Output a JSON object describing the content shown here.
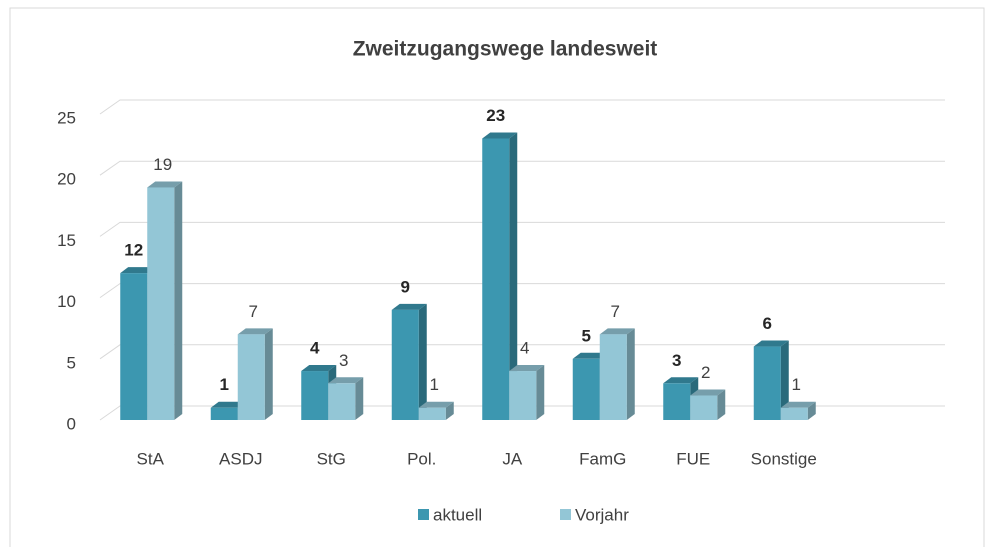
{
  "chart_data": {
    "type": "bar",
    "title": "Zweitzugangswege landesweit",
    "categories": [
      "StA",
      "ASDJ",
      "StG",
      "Pol.",
      "JA",
      "FamG",
      "FUE",
      "Sonstige"
    ],
    "series": [
      {
        "name": "aktuell",
        "color": "#3c97b0",
        "values": [
          12,
          1,
          4,
          9,
          23,
          5,
          3,
          6
        ]
      },
      {
        "name": "Vorjahr",
        "color": "#93c6d6",
        "values": [
          19,
          7,
          3,
          1,
          4,
          7,
          2,
          1
        ]
      }
    ],
    "ylim": [
      0,
      25
    ],
    "yticks": [
      0,
      5,
      10,
      15,
      20,
      25
    ],
    "grid": true,
    "legend": "bottom"
  }
}
